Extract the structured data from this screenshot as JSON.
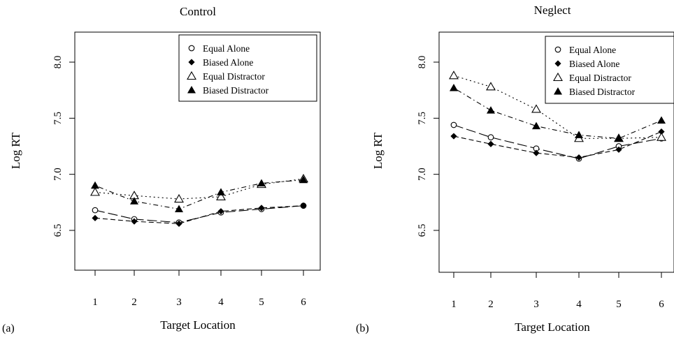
{
  "chart_data": [
    {
      "type": "line",
      "panel_label": "(a)",
      "title": "Control",
      "xlabel": "Target Location",
      "ylabel": "Log RT",
      "x": [
        1,
        2,
        3,
        4,
        5,
        6
      ],
      "xticks": [
        "1",
        "2",
        "3",
        "4",
        "5",
        "6"
      ],
      "yticks": [
        "6.5",
        "7.0",
        "7.5",
        "8.0"
      ],
      "ylim": [
        6.1,
        8.3
      ],
      "legend_position": "top-right",
      "series": [
        {
          "name": "Equal Alone",
          "marker": "circle-open",
          "line": "longdash",
          "values": [
            6.68,
            6.6,
            6.57,
            6.66,
            6.69,
            6.72
          ]
        },
        {
          "name": "Biased Alone",
          "marker": "diamond-filled",
          "line": "dashed",
          "values": [
            6.61,
            6.58,
            6.56,
            6.67,
            6.7,
            6.72
          ]
        },
        {
          "name": "Equal Distractor",
          "marker": "triangle-open",
          "line": "dotted",
          "values": [
            6.84,
            6.81,
            6.78,
            6.8,
            6.91,
            6.96
          ]
        },
        {
          "name": "Biased Distractor",
          "marker": "triangle-filled",
          "line": "dotdash",
          "values": [
            6.9,
            6.76,
            6.69,
            6.84,
            6.92,
            6.95
          ]
        }
      ]
    },
    {
      "type": "line",
      "panel_label": "(b)",
      "title": "Neglect",
      "xlabel": "Target Location",
      "ylabel": "Log RT",
      "x": [
        1,
        2,
        3,
        4,
        5,
        6
      ],
      "xticks": [
        "1",
        "2",
        "3",
        "4",
        "5",
        "6"
      ],
      "yticks": [
        "6.5",
        "7.0",
        "7.5",
        "8.0"
      ],
      "ylim": [
        6.1,
        8.3
      ],
      "legend_position": "top-right",
      "series": [
        {
          "name": "Equal Alone",
          "marker": "circle-open",
          "line": "longdash",
          "values": [
            7.44,
            7.33,
            7.23,
            7.14,
            7.25,
            7.32
          ]
        },
        {
          "name": "Biased Alone",
          "marker": "diamond-filled",
          "line": "dashed",
          "values": [
            7.34,
            7.27,
            7.19,
            7.15,
            7.22,
            7.38
          ]
        },
        {
          "name": "Equal Distractor",
          "marker": "triangle-open",
          "line": "dotted",
          "values": [
            7.88,
            7.78,
            7.58,
            7.32,
            7.32,
            7.33
          ]
        },
        {
          "name": "Biased Distractor",
          "marker": "triangle-filled",
          "line": "dotdash",
          "values": [
            7.77,
            7.57,
            7.43,
            7.35,
            7.32,
            7.48
          ]
        }
      ]
    }
  ]
}
